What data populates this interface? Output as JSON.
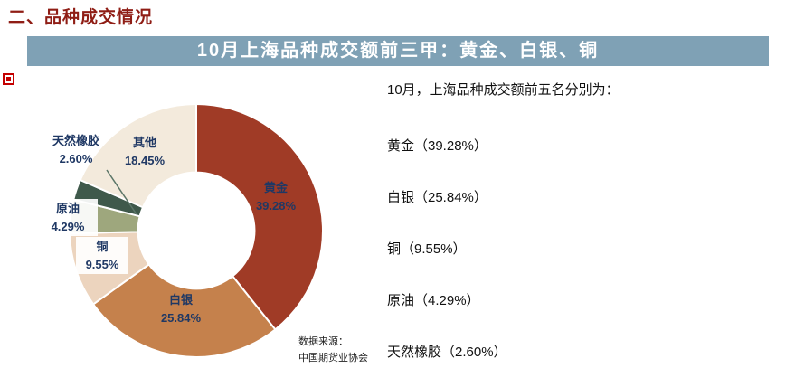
{
  "page": {
    "section_title": "二、品种成交情况",
    "banner_title": "10月上海品种成交额前三甲：黄金、白银、铜"
  },
  "summary": {
    "intro": "10月，上海品种成交额前五名分别为：",
    "items": [
      "黄金（39.28%）",
      "白银（25.84%）",
      "铜（9.55%）",
      "原油（4.29%）",
      "天然橡胶（2.60%）"
    ]
  },
  "source": {
    "line1": "数据来源：",
    "line2": "中国期货业协会"
  },
  "colors": {
    "banner_bg": "#7FA1B5",
    "title_red": "#8F1D15",
    "label_navy": "#1F3864"
  },
  "icons": {
    "logo": "red-stamp-logo-icon"
  },
  "chart_data": {
    "type": "pie",
    "subtype": "donut",
    "title": "10月上海品种成交额前三甲：黄金、白银、铜",
    "categories": [
      "黄金",
      "白银",
      "铜",
      "原油",
      "天然橡胶",
      "其他"
    ],
    "values": [
      39.28,
      25.84,
      9.55,
      4.29,
      2.6,
      18.45
    ],
    "pct_labels": [
      "39.28%",
      "25.84%",
      "9.55%",
      "4.29%",
      "2.60%",
      "18.45%"
    ],
    "colors": [
      "#A03B26",
      "#C5814C",
      "#ECD4BE",
      "#9EA77D",
      "#3F594B",
      "#F3EADC"
    ],
    "start_angle_deg": 0,
    "direction": "clockwise",
    "inner_radius_ratio": 0.46,
    "legend_position": "none",
    "label_color": "#1F3864",
    "leader_line_color": "#5B7668"
  }
}
